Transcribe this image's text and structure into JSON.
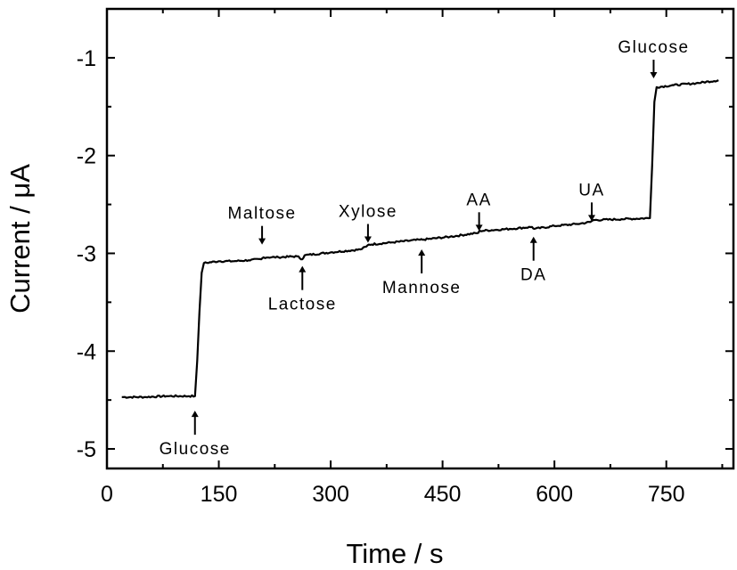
{
  "chart_data": {
    "type": "line",
    "xlabel": "Time / s",
    "ylabel": "Current / μA",
    "xlim": [
      0,
      840
    ],
    "ylim": [
      -5.2,
      -0.5
    ],
    "x_ticks": [
      0,
      150,
      300,
      450,
      600,
      750
    ],
    "x_tick_labels": [
      "0",
      "150",
      "300",
      "450",
      "600",
      "750"
    ],
    "y_ticks": [
      -5,
      -4,
      -3,
      -2,
      -1
    ],
    "y_tick_labels": [
      "-5",
      "-4",
      "-3",
      "-2",
      "-1"
    ],
    "grid": false,
    "legend": "none",
    "series": [
      {
        "x": [
          20,
          50,
          80,
          110,
          118,
          121,
          124,
          127,
          130,
          150,
          170,
          190,
          207,
          210,
          230,
          255,
          262,
          265,
          300,
          340,
          348,
          351,
          380,
          420,
          423,
          460,
          498,
          500,
          540,
          570,
          573,
          600,
          630,
          648,
          652,
          690,
          728,
          731,
          734,
          737,
          760,
          790,
          820
        ],
        "y": [
          -4.47,
          -4.47,
          -4.46,
          -4.46,
          -4.46,
          -4.1,
          -3.6,
          -3.2,
          -3.1,
          -3.08,
          -3.08,
          -3.07,
          -3.06,
          -3.04,
          -3.04,
          -3.03,
          -3.06,
          -3.02,
          -2.99,
          -2.96,
          -2.93,
          -2.91,
          -2.89,
          -2.86,
          -2.86,
          -2.83,
          -2.79,
          -2.77,
          -2.75,
          -2.73,
          -2.75,
          -2.72,
          -2.7,
          -2.68,
          -2.66,
          -2.65,
          -2.64,
          -2.1,
          -1.45,
          -1.3,
          -1.28,
          -1.26,
          -1.23
        ]
      }
    ],
    "annotations": [
      {
        "text": "Glucose",
        "x": 118,
        "y": -4.6,
        "side": "below"
      },
      {
        "text": "Maltose",
        "x": 208,
        "y": -2.92,
        "side": "above"
      },
      {
        "text": "Lactose",
        "x": 262,
        "y": -3.12,
        "side": "below"
      },
      {
        "text": "Xylose",
        "x": 350,
        "y": -2.9,
        "side": "above"
      },
      {
        "text": "Mannose",
        "x": 422,
        "y": -2.95,
        "side": "below"
      },
      {
        "text": "AA",
        "x": 499,
        "y": -2.78,
        "side": "above"
      },
      {
        "text": "DA",
        "x": 572,
        "y": -2.82,
        "side": "below"
      },
      {
        "text": "UA",
        "x": 650,
        "y": -2.68,
        "side": "above"
      },
      {
        "text": "Glucose",
        "x": 733,
        "y": -1.22,
        "side": "above"
      }
    ]
  }
}
